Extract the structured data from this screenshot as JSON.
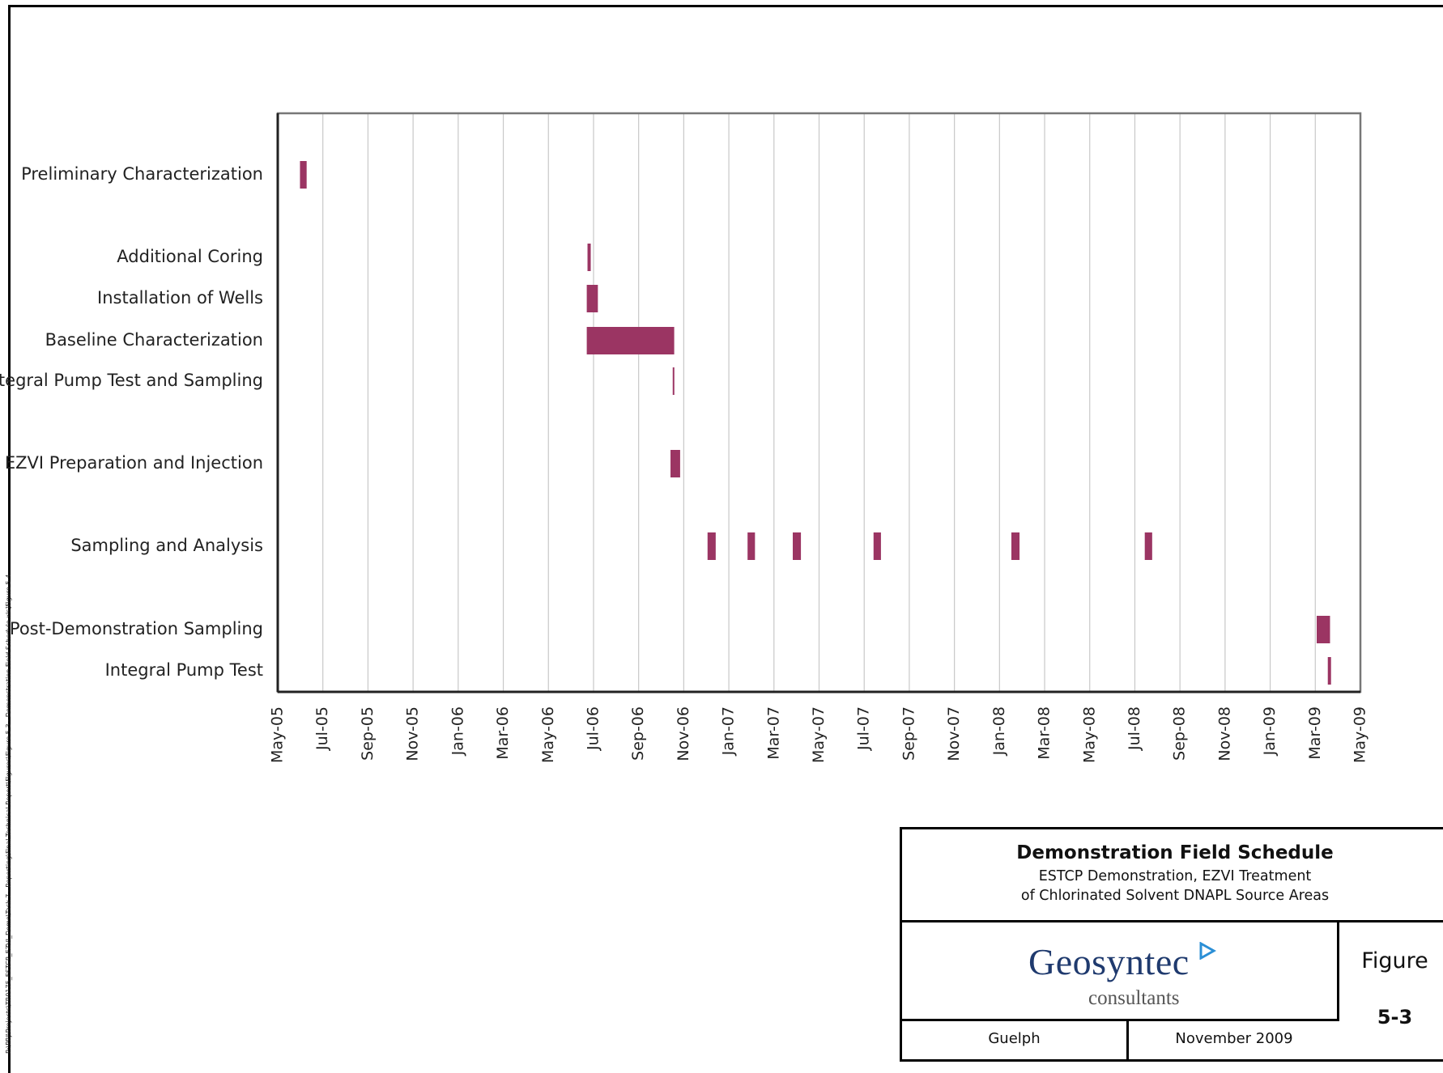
{
  "chart_data": {
    "type": "gantt",
    "title": "",
    "xlabel": "",
    "ylabel": "",
    "x_ticks": [
      "May-05",
      "Jul-05",
      "Sep-05",
      "Nov-05",
      "Jan-06",
      "Mar-06",
      "May-06",
      "Jul-06",
      "Sep-06",
      "Nov-06",
      "Jan-07",
      "Mar-07",
      "May-07",
      "Jul-07",
      "Sep-07",
      "Nov-07",
      "Jan-08",
      "Mar-08",
      "May-08",
      "Jul-08",
      "Sep-08",
      "Nov-08",
      "Jan-09",
      "Mar-09",
      "May-09"
    ],
    "xlim": [
      "2005-05-01",
      "2009-05-01"
    ],
    "grid": true,
    "bar_color": "#9b3563",
    "tasks": [
      {
        "name": "Preliminary Characterization",
        "segments": [
          {
            "start": "2005-05-31",
            "end": "2005-06-09"
          }
        ]
      },
      {
        "name": "Additional Coring",
        "segments": [
          {
            "start": "2006-06-23",
            "end": "2006-06-27"
          }
        ]
      },
      {
        "name": "Installation of Wells",
        "segments": [
          {
            "start": "2006-06-22",
            "end": "2006-07-07"
          }
        ]
      },
      {
        "name": "Baseline Characterization",
        "segments": [
          {
            "start": "2006-06-22",
            "end": "2006-10-18"
          }
        ]
      },
      {
        "name": "Integral Pump Test and Sampling",
        "segments": [
          {
            "start": "2006-10-16",
            "end": "2006-10-18"
          }
        ]
      },
      {
        "name": "EZVI Preparation and Injection",
        "segments": [
          {
            "start": "2006-10-13",
            "end": "2006-10-26"
          }
        ]
      },
      {
        "name": "Sampling and Analysis",
        "segments": [
          {
            "start": "2006-12-02",
            "end": "2006-12-13"
          },
          {
            "start": "2007-01-25",
            "end": "2007-02-04"
          },
          {
            "start": "2007-03-27",
            "end": "2007-04-07"
          },
          {
            "start": "2007-07-14",
            "end": "2007-07-24"
          },
          {
            "start": "2008-01-16",
            "end": "2008-01-27"
          },
          {
            "start": "2008-07-14",
            "end": "2008-07-24"
          }
        ]
      },
      {
        "name": "Post-Demonstration Sampling",
        "segments": [
          {
            "start": "2009-03-03",
            "end": "2009-03-21"
          }
        ]
      },
      {
        "name": "Integral Pump Test",
        "segments": [
          {
            "start": "2009-03-18",
            "end": "2009-03-21"
          }
        ]
      }
    ]
  },
  "title_block": {
    "title": "Demonstration Field Schedule",
    "subtitle_line1": "ESTCP Demonstration, EZVI Treatment",
    "subtitle_line2": "of Chlorinated Solvent DNAPL Source Areas",
    "logo_text": "Geosyntec",
    "logo_subtext": "consultants",
    "figure_label": "Figure",
    "figure_number": "5-3",
    "location": "Guelph",
    "date": "November 2009"
  },
  "side_path": "P:\\PRJ\\Projects\\TR0175_ESTCP_EZVI_Demo\\Task 7 - Reporting\\Final Technical Report\\Figures\\Figure 5-3 - Demonstration Field Schedule.xls]Figure 5-4"
}
